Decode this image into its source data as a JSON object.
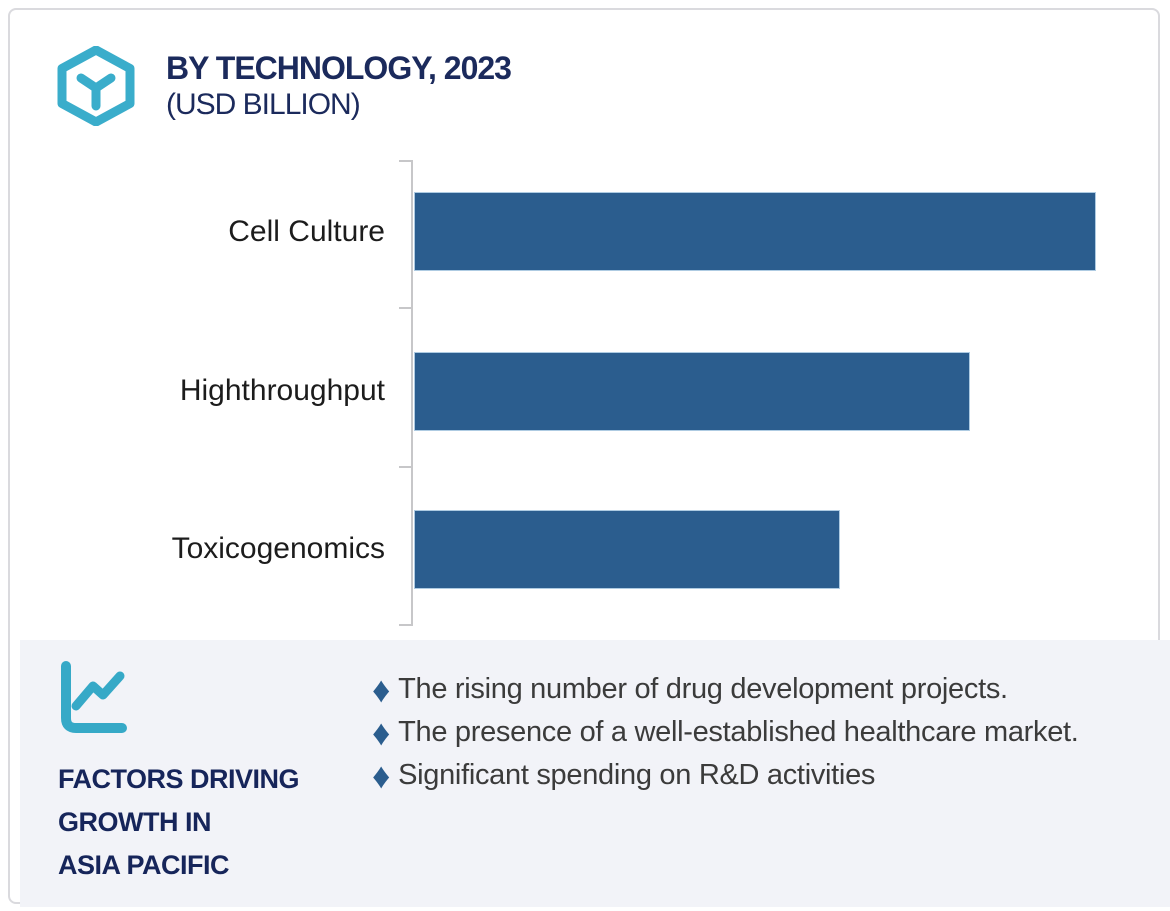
{
  "header": {
    "title": "BY TECHNOLOGY, 2023",
    "subtitle": "(USD BILLION)",
    "logo_icon": "hexagon-molecule-icon",
    "logo_color": "#3aadcb",
    "title_color": "#1b2a5c"
  },
  "chart_data": {
    "type": "bar",
    "orientation": "horizontal",
    "title": "BY TECHNOLOGY, 2023",
    "units": "USD BILLION",
    "categories": [
      "Cell Culture",
      "Highthroughput",
      "Toxicogenomics"
    ],
    "values_pct_of_axis": [
      91.3,
      74.4,
      57.0
    ],
    "series": [
      {
        "name": "2023",
        "values_pct_of_axis": [
          91.3,
          74.4,
          57.0
        ]
      }
    ],
    "xlabel": "",
    "ylabel": "",
    "axis_tick_labels_shown": false,
    "value_labels_shown": false,
    "grid": false,
    "legend": false,
    "bar_color": "#2b5d8e",
    "axis_color": "#c7c7c9",
    "note": "No numeric axis or data labels are visible in the image; values are measured bar lengths as percent of the plot width (Cell Culture longest, then Highthroughput, then Toxicogenomics)."
  },
  "factors_panel": {
    "icon": "line-chart-icon",
    "icon_color": "#36a9c7",
    "heading_line1": "FACTORS DRIVING",
    "heading_line2": "GROWTH IN",
    "heading_line3": "ASIA PACIFIC",
    "heading_color": "#16255a",
    "bullet_glyph": "♦",
    "bullet_color": "#2b5d8e",
    "bullets": [
      "The rising number of drug development projects.",
      "The presence of a well-established healthcare market.",
      "Significant spending on R&D activities"
    ],
    "background": "#f2f3f8"
  },
  "colors": {
    "card_border": "#dadade",
    "background": "#ffffff",
    "bar_blue": "#2b5d8e",
    "navy_text": "#1b2a5c",
    "teal_accent": "#3aadcb",
    "panel_bg": "#f2f3f8",
    "body_text": "#3b3b3b"
  }
}
